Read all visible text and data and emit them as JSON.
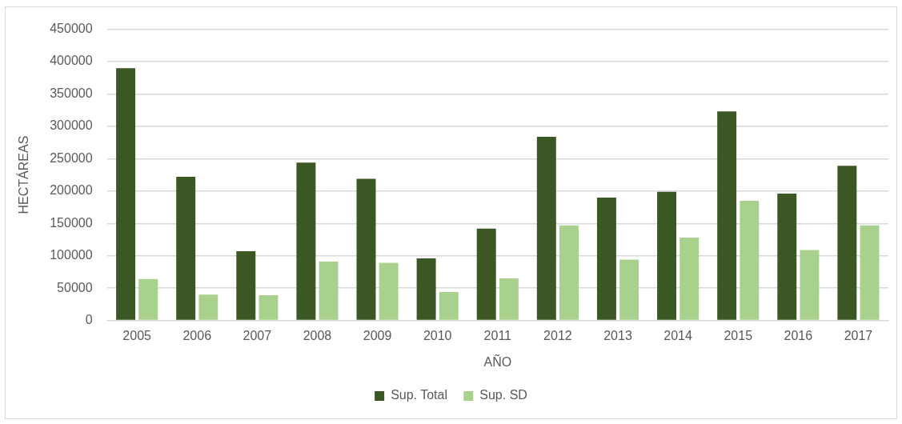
{
  "chart_data": {
    "type": "bar",
    "xlabel": "AÑO",
    "ylabel": "HECTÁREAS",
    "categories": [
      "2005",
      "2006",
      "2007",
      "2008",
      "2009",
      "2010",
      "2011",
      "2012",
      "2013",
      "2014",
      "2015",
      "2016",
      "2017"
    ],
    "series": [
      {
        "name": "Sup. Total",
        "color": "#3b5723",
        "values": [
          390000,
          222000,
          107000,
          244000,
          219000,
          96000,
          142000,
          284000,
          190000,
          199000,
          323000,
          196000,
          239000
        ]
      },
      {
        "name": "Sup. SD",
        "color": "#a9d18e",
        "values": [
          64000,
          40000,
          39000,
          91000,
          89000,
          44000,
          65000,
          147000,
          94000,
          128000,
          185000,
          109000,
          147000
        ]
      }
    ],
    "ylim": [
      0,
      450000
    ],
    "yticks": [
      0,
      50000,
      100000,
      150000,
      200000,
      250000,
      300000,
      350000,
      400000,
      450000
    ],
    "grid": "y",
    "legend": "bottom"
  }
}
